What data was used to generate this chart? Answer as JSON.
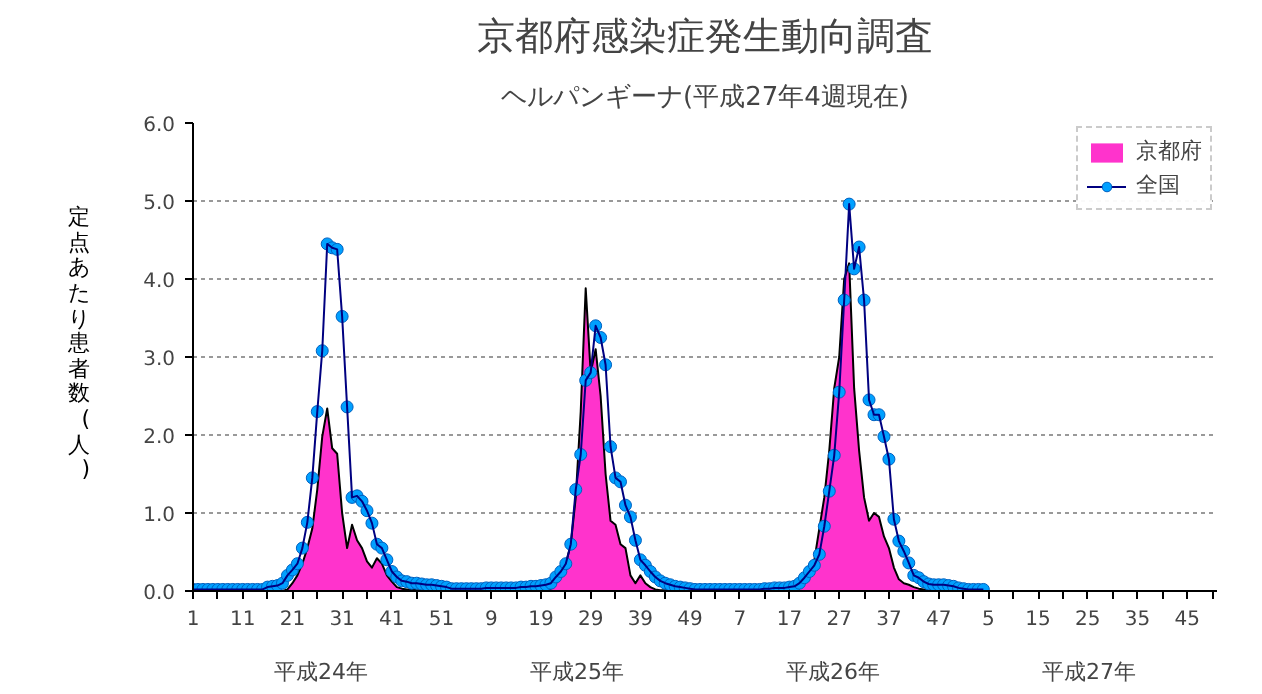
{
  "chart_data": {
    "type": "area",
    "title": "京都府感染症発生動向調査",
    "subtitle": "ヘルパンギーナ(平成27年4週現在)",
    "ylabel": "定点あたり患者数(人)",
    "categories": [
      "1",
      null,
      null,
      null,
      null,
      null,
      null,
      null,
      null,
      null,
      "11",
      null,
      null,
      null,
      null,
      null,
      null,
      null,
      null,
      null,
      "21",
      null,
      null,
      null,
      null,
      null,
      null,
      null,
      null,
      null,
      "31",
      null,
      null,
      null,
      null,
      null,
      null,
      null,
      null,
      null,
      "41",
      null,
      null,
      null,
      null,
      null,
      null,
      null,
      null,
      null,
      "51",
      null,
      null,
      null,
      null,
      null,
      null,
      null,
      null,
      null,
      "9",
      null,
      null,
      null,
      null,
      null,
      null,
      null,
      null,
      null,
      "19",
      null,
      null,
      null,
      null,
      null,
      null,
      null,
      null,
      null,
      "29",
      null,
      null,
      null,
      null,
      null,
      null,
      null,
      null,
      null,
      "39",
      null,
      null,
      null,
      null,
      null,
      null,
      null,
      null,
      null,
      "49",
      null,
      null,
      null,
      null,
      null,
      null,
      null,
      null,
      null,
      "7",
      null,
      null,
      null,
      null,
      null,
      null,
      null,
      null,
      null,
      "17",
      null,
      null,
      null,
      null,
      null,
      null,
      null,
      null,
      null,
      "27",
      null,
      null,
      null,
      null,
      null,
      null,
      null,
      null,
      null,
      "37",
      null,
      null,
      null,
      null,
      null,
      null,
      null,
      null,
      null,
      "47",
      null,
      null,
      null,
      null,
      null,
      null,
      null,
      null,
      null,
      "5",
      null,
      null,
      null,
      null,
      null,
      null,
      null,
      null,
      null,
      "15",
      null,
      null,
      null,
      null,
      null,
      null,
      null,
      null,
      null,
      "25",
      null,
      null,
      null,
      null,
      null,
      null,
      null,
      null,
      null,
      "35",
      null,
      null,
      null,
      null,
      null,
      null,
      null,
      null,
      null,
      "45",
      null,
      null,
      null,
      null,
      null,
      null
    ],
    "series": [
      {
        "name": "京都府",
        "color": "#ff33cc",
        "values": [
          0,
          0,
          0,
          0,
          0,
          0,
          0,
          0,
          0,
          0,
          0,
          0,
          0,
          0,
          0,
          0,
          0,
          0,
          0,
          0.02,
          0.1,
          0.2,
          0.35,
          0.55,
          0.8,
          1.3,
          1.98,
          2.34,
          1.83,
          1.76,
          1.0,
          0.55,
          0.85,
          0.65,
          0.55,
          0.38,
          0.3,
          0.42,
          0.35,
          0.2,
          0.12,
          0.05,
          0.03,
          0.02,
          0.02,
          0.01,
          0.01,
          0.01,
          0.01,
          0.01,
          0.01,
          0.01,
          0.01,
          0.01,
          0.01,
          0.01,
          0.01,
          0.01,
          0.01,
          0.01,
          0.01,
          0.01,
          0.01,
          0.01,
          0.01,
          0.01,
          0.01,
          0.01,
          0.01,
          0.01,
          0.01,
          0.01,
          0.03,
          0.1,
          0.2,
          0.35,
          0.6,
          1.2,
          2.3,
          3.88,
          2.8,
          3.1,
          2.5,
          1.5,
          0.9,
          0.85,
          0.6,
          0.55,
          0.2,
          0.1,
          0.2,
          0.1,
          0.05,
          0.02,
          0.01,
          0.01,
          0.01,
          0.01,
          0.01,
          0.01,
          0.01,
          0.01,
          0.01,
          0.01,
          0.01,
          0.01,
          0.01,
          0.01,
          0.01,
          0.01,
          0.01,
          0.01,
          0.01,
          0.01,
          0.01,
          0.01,
          0.01,
          0.01,
          0.01,
          0.01,
          0.01,
          0.03,
          0.05,
          0.1,
          0.25,
          0.4,
          0.8,
          1.2,
          1.8,
          2.6,
          3.0,
          4.0,
          4.2,
          2.6,
          1.8,
          1.2,
          0.9,
          1.0,
          0.95,
          0.7,
          0.55,
          0.3,
          0.15,
          0.1,
          0.08,
          0.05,
          0.03,
          0.02,
          0.01,
          0.01,
          0.01,
          0.01,
          0.01,
          0.01,
          0.01,
          0.01,
          0.01,
          0.01,
          0.01,
          0.01,
          null,
          null,
          null,
          null,
          null,
          null,
          null,
          null,
          null,
          null,
          null,
          null,
          null,
          null,
          null,
          null,
          null,
          null,
          null,
          null,
          null,
          null,
          null,
          null,
          null,
          null,
          null,
          null,
          null,
          null,
          null,
          null,
          null,
          null,
          null,
          null,
          null,
          null,
          null,
          null,
          null,
          null,
          null,
          null,
          null,
          null,
          null
        ]
      },
      {
        "name": "全国",
        "type": "line",
        "marker": "circle",
        "color": "#00a0ff",
        "values": [
          0.02,
          0.02,
          0.02,
          0.02,
          0.02,
          0.02,
          0.02,
          0.02,
          0.02,
          0.02,
          0.02,
          0.02,
          0.02,
          0.02,
          0.02,
          0.05,
          0.06,
          0.07,
          0.1,
          0.2,
          0.27,
          0.35,
          0.55,
          0.88,
          1.45,
          2.3,
          3.08,
          4.45,
          4.4,
          4.38,
          3.52,
          2.36,
          1.2,
          1.22,
          1.15,
          1.03,
          0.87,
          0.6,
          0.55,
          0.4,
          0.25,
          0.18,
          0.13,
          0.12,
          0.1,
          0.1,
          0.09,
          0.08,
          0.08,
          0.07,
          0.06,
          0.05,
          0.03,
          0.03,
          0.03,
          0.03,
          0.03,
          0.03,
          0.03,
          0.04,
          0.04,
          0.04,
          0.04,
          0.04,
          0.04,
          0.04,
          0.05,
          0.05,
          0.06,
          0.06,
          0.07,
          0.08,
          0.1,
          0.18,
          0.25,
          0.35,
          0.6,
          1.3,
          1.75,
          2.7,
          2.8,
          3.4,
          3.25,
          2.9,
          1.85,
          1.45,
          1.4,
          1.1,
          0.95,
          0.65,
          0.4,
          0.33,
          0.25,
          0.18,
          0.13,
          0.1,
          0.08,
          0.06,
          0.05,
          0.04,
          0.03,
          0.02,
          0.02,
          0.02,
          0.02,
          0.02,
          0.02,
          0.02,
          0.02,
          0.02,
          0.02,
          0.02,
          0.02,
          0.02,
          0.02,
          0.03,
          0.03,
          0.04,
          0.04,
          0.04,
          0.05,
          0.06,
          0.1,
          0.17,
          0.25,
          0.33,
          0.47,
          0.83,
          1.28,
          1.74,
          2.55,
          3.73,
          4.96,
          4.13,
          4.41,
          3.73,
          2.45,
          2.26,
          2.26,
          1.98,
          1.69,
          0.92,
          0.64,
          0.51,
          0.36,
          0.2,
          0.17,
          0.12,
          0.09,
          0.08,
          0.08,
          0.08,
          0.07,
          0.06,
          0.04,
          0.03,
          0.02,
          0.02,
          0.02,
          0.02,
          null,
          null,
          null,
          null,
          null,
          null,
          null,
          null,
          null,
          null,
          null,
          null,
          null,
          null,
          null,
          null,
          null,
          null,
          null,
          null,
          null,
          null,
          null,
          null,
          null,
          null,
          null,
          null,
          null,
          null,
          null,
          null,
          null,
          null,
          null,
          null,
          null,
          null,
          null,
          null,
          null,
          null,
          null,
          null,
          null,
          null,
          null
        ]
      }
    ],
    "ylim": [
      0,
      6
    ],
    "yticks": [
      {
        "value": 0,
        "label": "0.0"
      },
      {
        "value": 1,
        "label": "1.0"
      },
      {
        "value": 2,
        "label": "2.0"
      },
      {
        "value": 3,
        "label": "3.0"
      },
      {
        "value": 4,
        "label": "4.0"
      },
      {
        "value": 5,
        "label": "5.0"
      },
      {
        "value": 6,
        "label": "6.0"
      }
    ],
    "grid": "y",
    "legend": "top right",
    "annotations": [
      "平成24年",
      "平成25年",
      "平成26年",
      "平成27年"
    ]
  }
}
